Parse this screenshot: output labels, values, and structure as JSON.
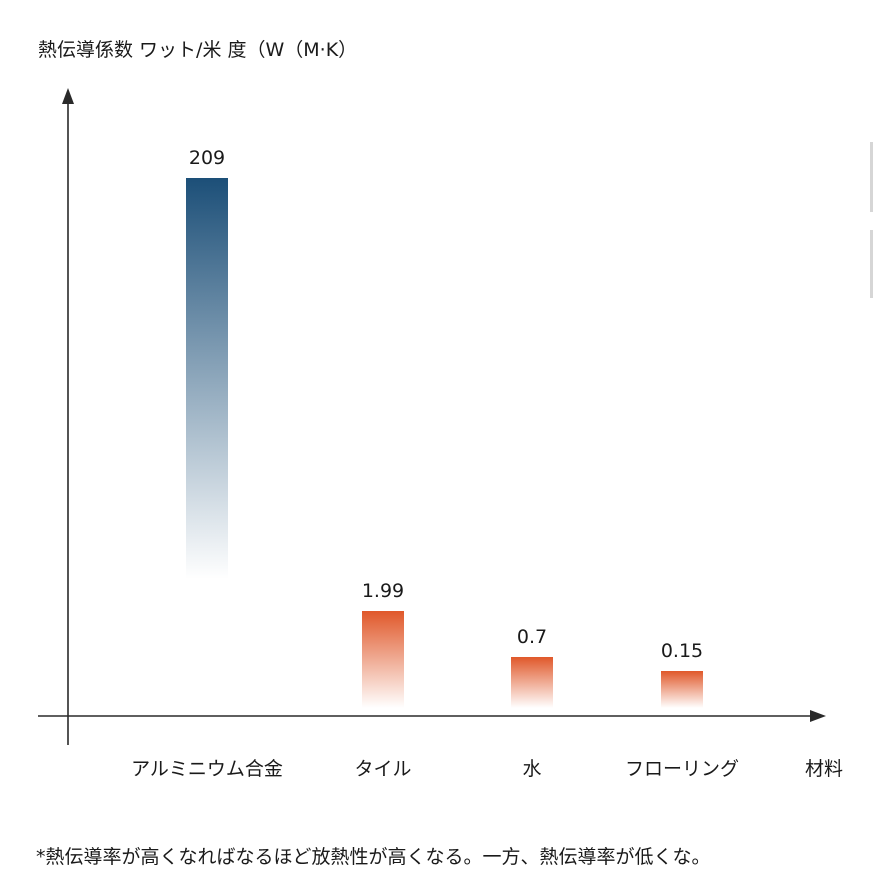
{
  "chart_data": {
    "type": "bar",
    "ylabel": "熱伝導係数 ワット/米 度（W（M·K）",
    "xlabel": "材料",
    "categories": [
      "アルミニウム合金",
      "タイル",
      "水",
      "フローリング"
    ],
    "values": [
      209,
      1.99,
      0.7,
      0.15
    ],
    "value_labels": [
      "209",
      "1.99",
      "0.7",
      "0.15"
    ],
    "bar_colors": [
      "#1c4f78",
      "#e0582a",
      "#e0582a",
      "#e0582a"
    ],
    "grid": false,
    "legend": "none"
  },
  "footnote": "*熱伝導率が高くなればなるほど放熱性が高くなる。一方、熱伝導率が低くな。",
  "colors": {
    "axis": "#2a2a2a",
    "aluminum": "#1c4f78",
    "orange": "#e0582a"
  }
}
